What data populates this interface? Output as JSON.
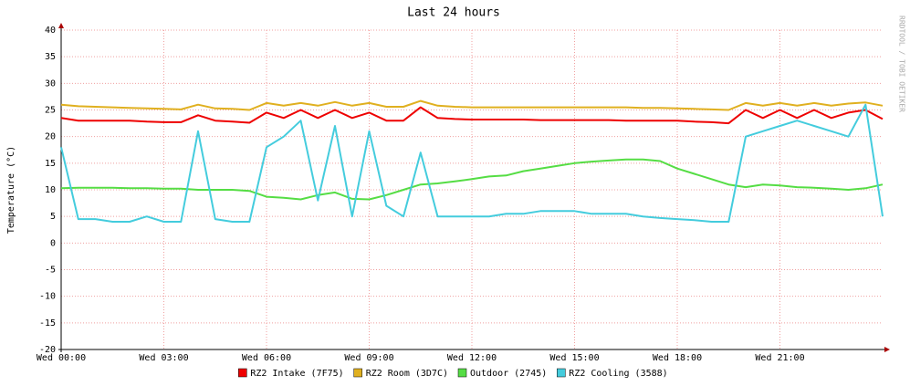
{
  "chart_data": {
    "type": "line",
    "title": "Last 24 hours",
    "y_label": "Temperature (°C)",
    "credit": "RRDTOOL / TOBI OETIKER",
    "x": [
      0,
      0.5,
      1,
      1.5,
      2,
      2.5,
      3,
      3.5,
      4,
      4.5,
      5,
      5.5,
      6,
      6.5,
      7,
      7.5,
      8,
      8.5,
      9,
      9.5,
      10,
      10.5,
      11,
      11.5,
      12,
      12.5,
      13,
      13.5,
      14,
      14.5,
      15,
      15.5,
      16,
      16.5,
      17,
      17.5,
      18,
      18.5,
      19,
      19.5,
      20,
      20.5,
      21,
      21.5,
      22,
      22.5,
      23,
      23.5,
      24
    ],
    "xlim": [
      0,
      24
    ],
    "xticks": [
      {
        "value": 0,
        "label": "Wed 00:00"
      },
      {
        "value": 3,
        "label": "Wed 03:00"
      },
      {
        "value": 6,
        "label": "Wed 06:00"
      },
      {
        "value": 9,
        "label": "Wed 09:00"
      },
      {
        "value": 12,
        "label": "Wed 12:00"
      },
      {
        "value": 15,
        "label": "Wed 15:00"
      },
      {
        "value": 18,
        "label": "Wed 18:00"
      },
      {
        "value": 21,
        "label": "Wed 21:00"
      }
    ],
    "ylim": [
      -20,
      40
    ],
    "yticks": [
      -20,
      -15,
      -10,
      -5,
      0,
      5,
      10,
      15,
      20,
      25,
      30,
      35,
      40
    ],
    "grid": true,
    "series": [
      {
        "name": "RZ2 Intake (7F75)",
        "color": "#ee0000",
        "values": [
          23.5,
          23,
          23,
          23,
          23,
          22.8,
          22.7,
          22.7,
          24,
          23,
          22.8,
          22.6,
          24.5,
          23.5,
          25,
          23.5,
          25,
          23.5,
          24.5,
          23,
          23,
          25.5,
          23.5,
          23.3,
          23.2,
          23.2,
          23.2,
          23.2,
          23.1,
          23.1,
          23.1,
          23.1,
          23.1,
          23,
          23,
          23,
          23,
          22.8,
          22.7,
          22.5,
          25,
          23.5,
          25,
          23.5,
          25,
          23.5,
          24.5,
          25,
          23.3
        ]
      },
      {
        "name": "RZ2 Room (3D7C)",
        "color": "#e0b020",
        "values": [
          26,
          25.7,
          25.6,
          25.5,
          25.4,
          25.3,
          25.2,
          25.1,
          26,
          25.3,
          25.2,
          25,
          26.3,
          25.8,
          26.3,
          25.8,
          26.5,
          25.8,
          26.3,
          25.6,
          25.6,
          26.7,
          25.8,
          25.6,
          25.5,
          25.5,
          25.5,
          25.5,
          25.5,
          25.5,
          25.5,
          25.5,
          25.5,
          25.5,
          25.4,
          25.4,
          25.3,
          25.2,
          25.1,
          25,
          26.3,
          25.8,
          26.3,
          25.8,
          26.3,
          25.8,
          26.2,
          26.4,
          25.8
        ]
      },
      {
        "name": "Outdoor (2745)",
        "color": "#55dd44",
        "values": [
          10.3,
          10.4,
          10.4,
          10.4,
          10.3,
          10.3,
          10.2,
          10.2,
          10,
          10,
          10,
          9.8,
          8.7,
          8.5,
          8.2,
          9,
          9.5,
          8.3,
          8.2,
          9,
          10,
          11,
          11.2,
          11.6,
          12,
          12.5,
          12.7,
          13.5,
          14,
          14.5,
          15,
          15.3,
          15.5,
          15.7,
          15.7,
          15.4,
          14,
          13,
          12,
          11,
          10.5,
          11,
          10.8,
          10.5,
          10.4,
          10.2,
          10,
          10.3,
          11
        ]
      },
      {
        "name": "RZ2 Cooling (3588)",
        "color": "#44ccdd",
        "values": [
          18,
          4.5,
          4.5,
          4,
          4,
          5,
          4,
          4,
          21,
          4.5,
          4,
          4,
          18,
          20,
          23,
          8,
          22,
          5,
          21,
          7,
          5,
          17,
          5,
          5,
          5,
          5,
          5.5,
          5.5,
          6,
          6,
          6,
          5.5,
          5.5,
          5.5,
          5,
          4.7,
          4.5,
          4.3,
          4,
          4,
          20,
          21,
          22,
          23,
          22,
          21,
          20,
          26,
          5
        ]
      }
    ]
  }
}
